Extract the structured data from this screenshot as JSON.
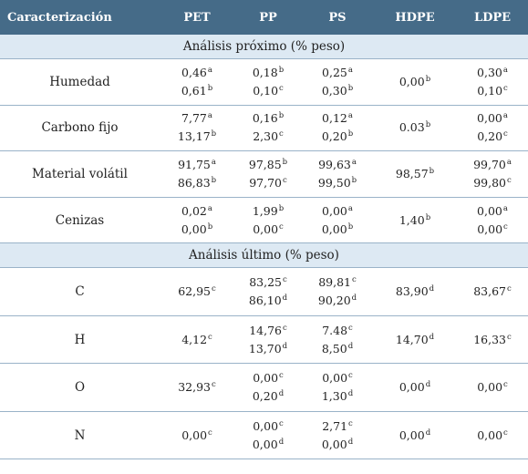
{
  "header": [
    "Caracterización",
    "PET",
    "PP",
    "PS",
    "HDPE",
    "LDPE"
  ],
  "sections": [
    {
      "title": "Análisis próximo (% peso)",
      "kind": "prox",
      "rows": [
        {
          "label": "Humedad",
          "cells": [
            [
              {
                "v": "0,46",
                "s": "a"
              },
              {
                "v": "0,61",
                "s": "b"
              }
            ],
            [
              {
                "v": "0,18",
                "s": "b"
              },
              {
                "v": "0,10",
                "s": "c"
              }
            ],
            [
              {
                "v": "0,25",
                "s": "a"
              },
              {
                "v": "0,30",
                "s": "b"
              }
            ],
            [
              {
                "v": "0,00",
                "s": "b"
              }
            ],
            [
              {
                "v": "0,30",
                "s": "a"
              },
              {
                "v": "0,10",
                "s": "c"
              }
            ]
          ]
        },
        {
          "label": "Carbono fijo",
          "cells": [
            [
              {
                "v": "7,77",
                "s": "a"
              },
              {
                "v": "13,17",
                "s": "b"
              }
            ],
            [
              {
                "v": "0,16",
                "s": "b"
              },
              {
                "v": "2,30",
                "s": "c"
              }
            ],
            [
              {
                "v": "0,12",
                "s": "a"
              },
              {
                "v": "0,20",
                "s": "b"
              }
            ],
            [
              {
                "v": "0.03",
                "s": "b"
              }
            ],
            [
              {
                "v": "0,00",
                "s": "a"
              },
              {
                "v": "0,20",
                "s": "c"
              }
            ]
          ]
        },
        {
          "label": "Material volátil",
          "cells": [
            [
              {
                "v": "91,75",
                "s": "a"
              },
              {
                "v": "86,83",
                "s": "b"
              }
            ],
            [
              {
                "v": "97,85",
                "s": "b"
              },
              {
                "v": "97,70",
                "s": "c"
              }
            ],
            [
              {
                "v": "99,63",
                "s": "a"
              },
              {
                "v": "99,50",
                "s": "b"
              }
            ],
            [
              {
                "v": "98,57",
                "s": "b"
              }
            ],
            [
              {
                "v": "99,70",
                "s": "a"
              },
              {
                "v": "99,80",
                "s": "c"
              }
            ]
          ]
        },
        {
          "label": "Cenizas",
          "cells": [
            [
              {
                "v": "0,02",
                "s": "a"
              },
              {
                "v": "0,00",
                "s": "b"
              }
            ],
            [
              {
                "v": "1,99",
                "s": "b"
              },
              {
                "v": "0,00",
                "s": "c"
              }
            ],
            [
              {
                "v": "0,00",
                "s": "a"
              },
              {
                "v": "0,00",
                "s": "b"
              }
            ],
            [
              {
                "v": "1,40",
                "s": "b"
              }
            ],
            [
              {
                "v": "0,00",
                "s": "a"
              },
              {
                "v": "0,00",
                "s": "c"
              }
            ]
          ]
        }
      ]
    },
    {
      "title": "Análisis último (% peso)",
      "kind": "ult",
      "rows": [
        {
          "label": "C",
          "cells": [
            [
              {
                "v": "62,95",
                "s": "c"
              }
            ],
            [
              {
                "v": "83,25",
                "s": "c"
              },
              {
                "v": "86,10",
                "s": "d"
              }
            ],
            [
              {
                "v": "89,81",
                "s": "c"
              },
              {
                "v": "90,20",
                "s": "d"
              }
            ],
            [
              {
                "v": "83,90",
                "s": "d"
              }
            ],
            [
              {
                "v": "83,67",
                "s": "c"
              }
            ]
          ]
        },
        {
          "label": "H",
          "cells": [
            [
              {
                "v": "4,12",
                "s": "c"
              }
            ],
            [
              {
                "v": "14,76",
                "s": "c"
              },
              {
                "v": "13,70",
                "s": "d"
              }
            ],
            [
              {
                "v": "7.48",
                "s": "c"
              },
              {
                "v": "8,50",
                "s": "d"
              }
            ],
            [
              {
                "v": "14,70",
                "s": "d"
              }
            ],
            [
              {
                "v": "16,33",
                "s": "c"
              }
            ]
          ]
        },
        {
          "label": "O",
          "cells": [
            [
              {
                "v": "32,93",
                "s": "c"
              }
            ],
            [
              {
                "v": "0,00",
                "s": "c"
              },
              {
                "v": "0,20",
                "s": "d"
              }
            ],
            [
              {
                "v": "0,00",
                "s": "c"
              },
              {
                "v": "1,30",
                "s": "d"
              }
            ],
            [
              {
                "v": "0,00",
                "s": "d"
              }
            ],
            [
              {
                "v": "0,00",
                "s": "c"
              }
            ]
          ]
        },
        {
          "label": "N",
          "cells": [
            [
              {
                "v": "0,00",
                "s": "c"
              }
            ],
            [
              {
                "v": "0,00",
                "s": "c"
              },
              {
                "v": "0,00",
                "s": "d"
              }
            ],
            [
              {
                "v": "2,71",
                "s": "c"
              },
              {
                "v": "0,00",
                "s": "d"
              }
            ],
            [
              {
                "v": "0,00",
                "s": "d"
              }
            ],
            [
              {
                "v": "0,00",
                "s": "c"
              }
            ]
          ]
        }
      ]
    }
  ]
}
